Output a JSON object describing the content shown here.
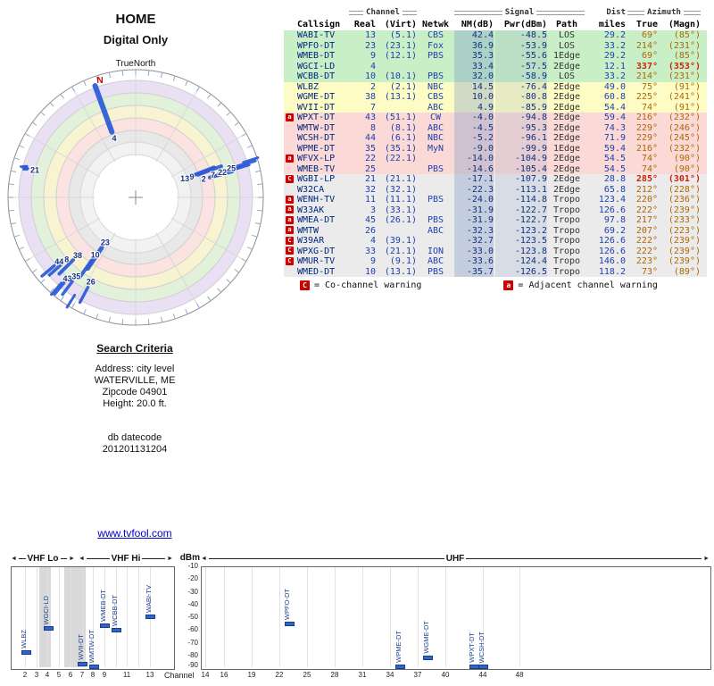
{
  "radar": {
    "title": "HOME",
    "subtitle": "Digital Only",
    "true_north_label": "TrueNorth",
    "north_label": "N",
    "line_color": "#2a5bd7",
    "label_color": "#17307e",
    "north": {
      "az": 343,
      "r": 137
    },
    "stations": [
      {
        "label": "4",
        "az": 340,
        "label_r": 70,
        "r1": 78,
        "r2": 133,
        "w": 6
      },
      {
        "label": "21",
        "az": 285,
        "label_r": 117,
        "r1": 125,
        "r2": 133,
        "w": 3,
        "marker_r": 128
      },
      {
        "label": "13",
        "az": 69,
        "label_r": 59,
        "r1": 66,
        "r2": 94,
        "w": 4
      },
      {
        "label": "9",
        "az": 70,
        "label_r": 67,
        "r1": 74,
        "r2": 102,
        "w": 4
      },
      {
        "label": "2",
        "az": 75,
        "label_r": 79,
        "r1": 86,
        "r2": 112,
        "w": 4
      },
      {
        "label": "7",
        "az": 74,
        "label_r": 90,
        "r1": 97,
        "r2": 122,
        "w": 3.5
      },
      {
        "label": "22",
        "az": 74,
        "label_r": 101,
        "r1": 108,
        "r2": 132,
        "w": 3.5
      },
      {
        "label": "25",
        "az": 73,
        "label_r": 112,
        "r1": 119,
        "r2": 140,
        "w": 3.5
      },
      {
        "label": "",
        "az": 72,
        "label_r": 0,
        "r1": 127,
        "r2": 144,
        "w": 3
      },
      {
        "label": "23",
        "az": 214,
        "label_r": 61,
        "r1": 68,
        "r2": 96,
        "w": 5
      },
      {
        "label": "10",
        "az": 215,
        "label_r": 79,
        "r1": 86,
        "r2": 110,
        "w": 4
      },
      {
        "label": "38",
        "az": 225,
        "label_r": 92,
        "r1": 99,
        "r2": 121,
        "w": 4
      },
      {
        "label": "8",
        "az": 228,
        "label_r": 104,
        "r1": 111,
        "r2": 130,
        "w": 3.5
      },
      {
        "label": "44",
        "az": 230,
        "label_r": 112,
        "r1": 119,
        "r2": 137,
        "w": 3.5
      },
      {
        "label": "43",
        "az": 220,
        "label_r": 119,
        "r1": 125,
        "r2": 141,
        "w": 3.5
      },
      {
        "label": "35",
        "az": 217,
        "label_r": 111,
        "r1": 118,
        "r2": 136,
        "w": 3.5
      },
      {
        "label": "26",
        "az": 208,
        "label_r": 107,
        "r1": 114,
        "r2": 133,
        "w": 3.5
      },
      {
        "label": "",
        "az": 221,
        "label_r": 0,
        "r1": 127,
        "r2": 144,
        "w": 3
      },
      {
        "label": "",
        "az": 212,
        "label_r": 0,
        "r1": 129,
        "r2": 145,
        "w": 3
      }
    ]
  },
  "table": {
    "group_headers": {
      "channel": "Channel",
      "signal": "Signal",
      "dist": "Dist",
      "azimuth": "Azimuth"
    },
    "columns": [
      "Callsign",
      "Real",
      "(Virt)",
      "Netwk",
      "NM(dB)",
      "Pwr(dBm)",
      "Path",
      "miles",
      "True",
      "(Magn)"
    ],
    "rows": [
      {
        "callsign": "WABI-TV",
        "real": "13",
        "virt": "(5.1)",
        "netwk": "CBS",
        "nm": "42.4",
        "pwr": "-48.5",
        "path": "LOS",
        "miles": "29.2",
        "az_true": "69°",
        "az_magn": "(85°)",
        "tier": "green",
        "warning": "",
        "az_hot": false
      },
      {
        "callsign": "WPFO-DT",
        "real": "23",
        "virt": "(23.1)",
        "netwk": "Fox",
        "nm": "36.9",
        "pwr": "-53.9",
        "path": "LOS",
        "miles": "33.2",
        "az_true": "214°",
        "az_magn": "(231°)",
        "tier": "green",
        "warning": "",
        "az_hot": false
      },
      {
        "callsign": "WMEB-DT",
        "real": "9",
        "virt": "(12.1)",
        "netwk": "PBS",
        "nm": "35.3",
        "pwr": "-55.6",
        "path": "1Edge",
        "miles": "29.2",
        "az_true": "69°",
        "az_magn": "(85°)",
        "tier": "green",
        "warning": "",
        "az_hot": false
      },
      {
        "callsign": "WGCI-LD",
        "real": "4",
        "virt": "",
        "netwk": "",
        "nm": "33.4",
        "pwr": "-57.5",
        "path": "2Edge",
        "miles": "12.1",
        "az_true": "337°",
        "az_magn": "(353°)",
        "tier": "green",
        "warning": "",
        "az_hot": true
      },
      {
        "callsign": "WCBB-DT",
        "real": "10",
        "virt": "(10.1)",
        "netwk": "PBS",
        "nm": "32.0",
        "pwr": "-58.9",
        "path": "LOS",
        "miles": "33.2",
        "az_true": "214°",
        "az_magn": "(231°)",
        "tier": "green",
        "warning": "",
        "az_hot": false
      },
      {
        "callsign": "WLBZ",
        "real": "2",
        "virt": "(2.1)",
        "netwk": "NBC",
        "nm": "14.5",
        "pwr": "-76.4",
        "path": "2Edge",
        "miles": "49.0",
        "az_true": "75°",
        "az_magn": "(91°)",
        "tier": "yellow",
        "warning": "",
        "az_hot": false
      },
      {
        "callsign": "WGME-DT",
        "real": "38",
        "virt": "(13.1)",
        "netwk": "CBS",
        "nm": "10.0",
        "pwr": "-80.8",
        "path": "2Edge",
        "miles": "60.8",
        "az_true": "225°",
        "az_magn": "(241°)",
        "tier": "yellow",
        "warning": "",
        "az_hot": false
      },
      {
        "callsign": "WVII-DT",
        "real": "7",
        "virt": "",
        "netwk": "ABC",
        "nm": "4.9",
        "pwr": "-85.9",
        "path": "2Edge",
        "miles": "54.4",
        "az_true": "74°",
        "az_magn": "(91°)",
        "tier": "yellow",
        "warning": "",
        "az_hot": false
      },
      {
        "callsign": "WPXT-DT",
        "real": "43",
        "virt": "(51.1)",
        "netwk": "CW",
        "nm": "-4.0",
        "pwr": "-94.8",
        "path": "2Edge",
        "miles": "59.4",
        "az_true": "216°",
        "az_magn": "(232°)",
        "tier": "pink",
        "warning": "a",
        "az_hot": false
      },
      {
        "callsign": "WMTW-DT",
        "real": "8",
        "virt": "(8.1)",
        "netwk": "ABC",
        "nm": "-4.5",
        "pwr": "-95.3",
        "path": "2Edge",
        "miles": "74.3",
        "az_true": "229°",
        "az_magn": "(246°)",
        "tier": "pink",
        "warning": "",
        "az_hot": false
      },
      {
        "callsign": "WCSH-DT",
        "real": "44",
        "virt": "(6.1)",
        "netwk": "NBC",
        "nm": "-5.2",
        "pwr": "-96.1",
        "path": "2Edge",
        "miles": "71.9",
        "az_true": "229°",
        "az_magn": "(245°)",
        "tier": "pink",
        "warning": "",
        "az_hot": false
      },
      {
        "callsign": "WPME-DT",
        "real": "35",
        "virt": "(35.1)",
        "netwk": "MyN",
        "nm": "-9.0",
        "pwr": "-99.9",
        "path": "1Edge",
        "miles": "59.4",
        "az_true": "216°",
        "az_magn": "(232°)",
        "tier": "pink",
        "warning": "",
        "az_hot": false
      },
      {
        "callsign": "WFVX-LP",
        "real": "22",
        "virt": "(22.1)",
        "netwk": "",
        "nm": "-14.0",
        "pwr": "-104.9",
        "path": "2Edge",
        "miles": "54.5",
        "az_true": "74°",
        "az_magn": "(90°)",
        "tier": "pink",
        "warning": "a",
        "az_hot": false
      },
      {
        "callsign": "WMEB-TV",
        "real": "25",
        "virt": "",
        "netwk": "PBS",
        "nm": "-14.6",
        "pwr": "-105.4",
        "path": "2Edge",
        "miles": "54.5",
        "az_true": "74°",
        "az_magn": "(90°)",
        "tier": "pink",
        "warning": "",
        "az_hot": false
      },
      {
        "callsign": "WGBI-LP",
        "real": "21",
        "virt": "(21.1)",
        "netwk": "",
        "nm": "-17.1",
        "pwr": "-107.9",
        "path": "2Edge",
        "miles": "28.8",
        "az_true": "285°",
        "az_magn": "(301°)",
        "tier": "gray",
        "warning": "C",
        "az_hot": true
      },
      {
        "callsign": "W32CA",
        "real": "32",
        "virt": "(32.1)",
        "netwk": "",
        "nm": "-22.3",
        "pwr": "-113.1",
        "path": "2Edge",
        "miles": "65.8",
        "az_true": "212°",
        "az_magn": "(228°)",
        "tier": "gray",
        "warning": "",
        "az_hot": false
      },
      {
        "callsign": "WENH-TV",
        "real": "11",
        "virt": "(11.1)",
        "netwk": "PBS",
        "nm": "-24.0",
        "pwr": "-114.8",
        "path": "Tropo",
        "miles": "123.4",
        "az_true": "220°",
        "az_magn": "(236°)",
        "tier": "gray",
        "warning": "a",
        "az_hot": false
      },
      {
        "callsign": "W33AK",
        "real": "3",
        "virt": "(33.1)",
        "netwk": "",
        "nm": "-31.9",
        "pwr": "-122.7",
        "path": "Tropo",
        "miles": "126.6",
        "az_true": "222°",
        "az_magn": "(239°)",
        "tier": "gray",
        "warning": "a",
        "az_hot": false
      },
      {
        "callsign": "WMEA-DT",
        "real": "45",
        "virt": "(26.1)",
        "netwk": "PBS",
        "nm": "-31.9",
        "pwr": "-122.7",
        "path": "Tropo",
        "miles": "97.8",
        "az_true": "217°",
        "az_magn": "(233°)",
        "tier": "gray",
        "warning": "a",
        "az_hot": false
      },
      {
        "callsign": "WMTW",
        "real": "26",
        "virt": "",
        "netwk": "ABC",
        "nm": "-32.3",
        "pwr": "-123.2",
        "path": "Tropo",
        "miles": "69.2",
        "az_true": "207°",
        "az_magn": "(223°)",
        "tier": "gray",
        "warning": "a",
        "az_hot": false
      },
      {
        "callsign": "W39AR",
        "real": "4",
        "virt": "(39.1)",
        "netwk": "",
        "nm": "-32.7",
        "pwr": "-123.5",
        "path": "Tropo",
        "miles": "126.6",
        "az_true": "222°",
        "az_magn": "(239°)",
        "tier": "gray",
        "warning": "C",
        "az_hot": false
      },
      {
        "callsign": "WPXG-DT",
        "real": "33",
        "virt": "(21.1)",
        "netwk": "ION",
        "nm": "-33.0",
        "pwr": "-123.8",
        "path": "Tropo",
        "miles": "126.6",
        "az_true": "222°",
        "az_magn": "(239°)",
        "tier": "gray",
        "warning": "C",
        "az_hot": false
      },
      {
        "callsign": "WMUR-TV",
        "real": "9",
        "virt": "(9.1)",
        "netwk": "ABC",
        "nm": "-33.6",
        "pwr": "-124.4",
        "path": "Tropo",
        "miles": "146.0",
        "az_true": "223°",
        "az_magn": "(239°)",
        "tier": "gray",
        "warning": "C",
        "az_hot": false
      },
      {
        "callsign": "WMED-DT",
        "real": "10",
        "virt": "(13.1)",
        "netwk": "PBS",
        "nm": "-35.7",
        "pwr": "-126.5",
        "path": "Tropo",
        "miles": "118.2",
        "az_true": "73°",
        "az_magn": "(89°)",
        "tier": "gray",
        "warning": "",
        "az_hot": false
      }
    ]
  },
  "legend": {
    "c_symbol": "C",
    "c_text": "= Co-channel warning",
    "a_symbol": "a",
    "a_text": "= Adjacent channel warning"
  },
  "search": {
    "heading": "Search Criteria",
    "address": "Address: city level",
    "city": "WATERVILLE, ME",
    "zip": "Zipcode 04901",
    "height": "Height: 20.0 ft.",
    "db_label": "db datecode",
    "db_value": "201201131204"
  },
  "link_text": "www.tvfool.com",
  "signal_chart": {
    "dbm_label": "dBm",
    "channel_label": "Channel",
    "bands": [
      {
        "label": "VHF Lo"
      },
      {
        "label": "VHF Hi"
      },
      {
        "label": "UHF"
      }
    ],
    "dbm_ticks": [
      -10,
      -20,
      -30,
      -40,
      -50,
      -60,
      -70,
      -80,
      -90
    ],
    "vhf_ticks": [
      2,
      3,
      4,
      5,
      6,
      7,
      8,
      9,
      11,
      13
    ],
    "uhf_ticks": [
      14,
      16,
      19,
      22,
      25,
      28,
      31,
      34,
      37,
      40,
      44,
      48
    ]
  },
  "chart_data": [
    {
      "type": "scatter",
      "name": "azimuth-polar-plot",
      "title": "HOME Digital Only",
      "angle_unit": "degrees_true",
      "points": [
        {
          "label": "4",
          "azimuth": 337
        },
        {
          "label": "21",
          "azimuth": 285
        },
        {
          "label": "13",
          "azimuth": 69
        },
        {
          "label": "9",
          "azimuth": 69
        },
        {
          "label": "2",
          "azimuth": 75
        },
        {
          "label": "7",
          "azimuth": 74
        },
        {
          "label": "22",
          "azimuth": 74
        },
        {
          "label": "25",
          "azimuth": 74
        },
        {
          "label": "23",
          "azimuth": 214
        },
        {
          "label": "10",
          "azimuth": 214
        },
        {
          "label": "38",
          "azimuth": 225
        },
        {
          "label": "8",
          "azimuth": 229
        },
        {
          "label": "44",
          "azimuth": 229
        },
        {
          "label": "43",
          "azimuth": 216
        },
        {
          "label": "35",
          "azimuth": 216
        },
        {
          "label": "26",
          "azimuth": 207
        }
      ]
    },
    {
      "type": "scatter",
      "name": "signal-strength-by-channel",
      "xlabel": "Channel",
      "ylabel": "dBm",
      "ylim": [
        -90,
        -10
      ],
      "bands": [
        "VHF Lo",
        "VHF Hi",
        "UHF"
      ],
      "points": [
        {
          "station": "WLBZ",
          "channel": 2,
          "band": "vhf",
          "dbm": -76.4
        },
        {
          "station": "WGCI-LD",
          "channel": 4,
          "band": "vhf",
          "dbm": -57.5
        },
        {
          "station": "WVII-DT",
          "channel": 7,
          "band": "vhf",
          "dbm": -85.9
        },
        {
          "station": "WMTW-DT",
          "channel": 8,
          "band": "vhf",
          "dbm": -95.3
        },
        {
          "station": "WMEB-DT",
          "channel": 9,
          "band": "vhf",
          "dbm": -55.6
        },
        {
          "station": "WCBB-DT",
          "channel": 10,
          "band": "vhf",
          "dbm": -58.9
        },
        {
          "station": "WABI-TV",
          "channel": 13,
          "band": "vhf",
          "dbm": -48.5
        },
        {
          "station": "WPFO-DT",
          "channel": 23,
          "band": "uhf",
          "dbm": -53.9
        },
        {
          "station": "WPME-DT",
          "channel": 35,
          "band": "uhf",
          "dbm": -99.9
        },
        {
          "station": "WGME-DT",
          "channel": 38,
          "band": "uhf",
          "dbm": -80.8
        },
        {
          "station": "WPXT-DT",
          "channel": 43,
          "band": "uhf",
          "dbm": -94.8
        },
        {
          "station": "WCSH-DT",
          "channel": 44,
          "band": "uhf",
          "dbm": -96.1
        }
      ]
    }
  ]
}
